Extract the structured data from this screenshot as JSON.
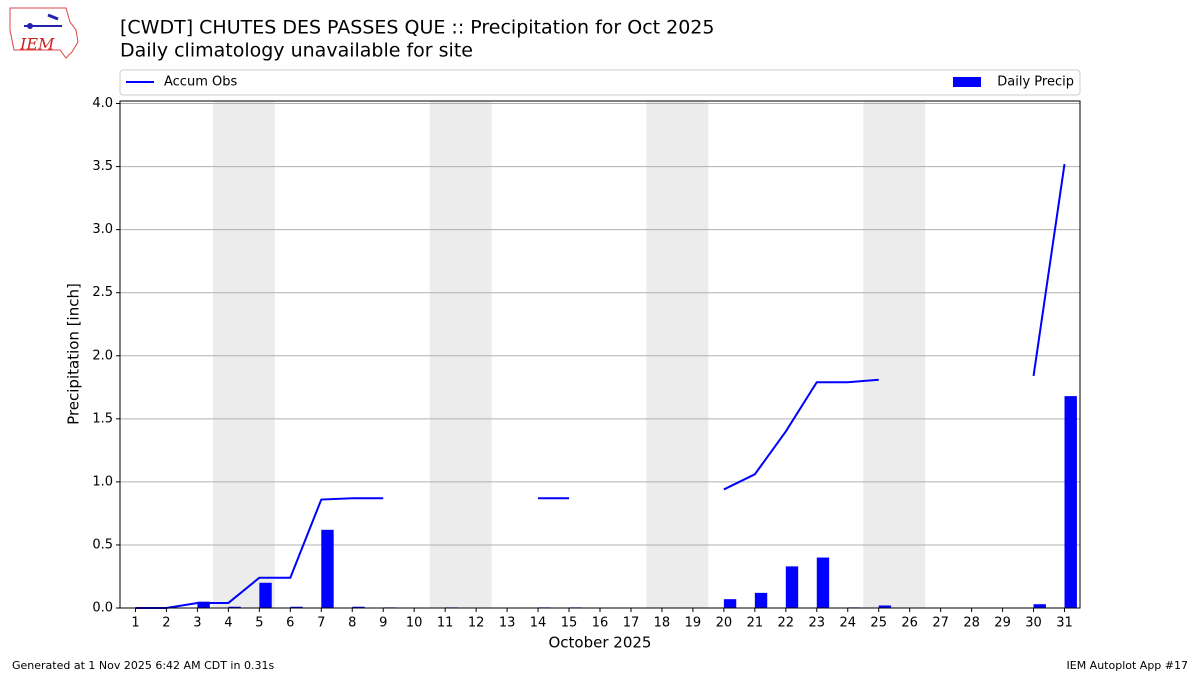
{
  "chart_data": {
    "type": "bar_line",
    "title": "[CWDT] CHUTES DES PASSES  QUE :: Precipitation for Oct 2025",
    "subtitle": "Daily climatology unavailable for site",
    "x_label": "October 2025",
    "y_label": "Precipitation [inch]",
    "x": [
      1,
      2,
      3,
      4,
      5,
      6,
      7,
      8,
      9,
      10,
      11,
      12,
      13,
      14,
      15,
      16,
      17,
      18,
      19,
      20,
      21,
      22,
      23,
      24,
      25,
      26,
      27,
      28,
      29,
      30,
      31
    ],
    "series": [
      {
        "name": "Accum Obs",
        "kind": "line",
        "color": "#0000ff",
        "values": [
          0,
          0,
          0.04,
          0.04,
          0.24,
          0.24,
          0.86,
          0.87,
          0.87,
          null,
          null,
          null,
          null,
          0.87,
          0.87,
          null,
          null,
          null,
          null,
          0.94,
          1.06,
          1.4,
          1.79,
          1.79,
          1.81,
          null,
          null,
          null,
          null,
          1.84,
          3.52
        ]
      },
      {
        "name": "Daily Precip",
        "kind": "bar",
        "color": "#0000ff",
        "values": [
          0,
          0,
          0.05,
          0.01,
          0.2,
          0.01,
          0.62,
          0.01,
          0.005,
          null,
          0.005,
          null,
          null,
          0.005,
          0.005,
          null,
          null,
          null,
          null,
          0.07,
          0.12,
          0.33,
          0.4,
          0.005,
          0.02,
          null,
          null,
          null,
          null,
          0.03,
          1.68
        ]
      }
    ],
    "shaded_spans": [
      [
        3.5,
        5.5
      ],
      [
        10.5,
        12.5
      ],
      [
        17.5,
        19.5
      ],
      [
        24.5,
        26.5
      ]
    ],
    "xlim": [
      0.5,
      31.5
    ],
    "ylim": [
      0,
      4.02
    ],
    "yticks": [
      {
        "value": 0,
        "label": "0.0"
      },
      0.5,
      {
        "value": 1,
        "label": "1.0"
      },
      1.5,
      {
        "value": 2,
        "label": "2.0"
      },
      2.5,
      {
        "value": 3,
        "label": "3.0"
      },
      3.5,
      {
        "value": 4,
        "label": "4.0"
      }
    ],
    "grid": true,
    "footer_left": "Generated at 1 Nov 2025 6:42 AM CDT in 0.31s",
    "footer_right": "IEM Autoplot App #17",
    "logo_text": "IEM"
  }
}
